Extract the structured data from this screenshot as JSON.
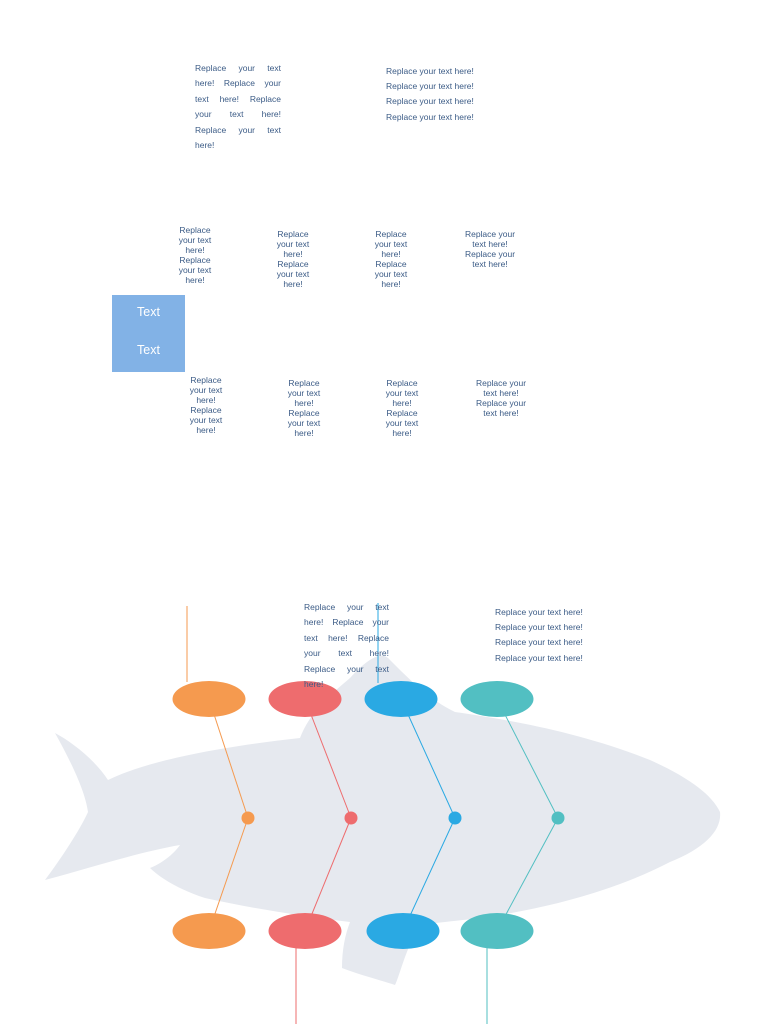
{
  "colors": {
    "fish": "#e6e9ef",
    "orange": "#f59a4f",
    "red": "#ee6c6e",
    "blue": "#2aa9e3",
    "teal": "#52bfc2",
    "box": "#82b2e6",
    "text": "#3b5b86"
  },
  "top_section": {
    "block_left": "Replace your text here! Replace your text here! Replace your text here!",
    "block_left_last": "Replace your text here!",
    "block_right": [
      "Replace your text here!",
      "Replace your text here!",
      "Replace your text here!",
      "Replace your text here!"
    ]
  },
  "middle_section": {
    "box_labels": [
      "Text",
      "Text"
    ],
    "upper_row": [
      [
        "Replace",
        "your text",
        "here!",
        "Replace",
        "your text",
        "here!"
      ],
      [
        "Replace",
        "your text",
        "here!",
        "Replace",
        "your text",
        "here!"
      ],
      [
        "Replace",
        "your text",
        "here!",
        "Replace",
        "your text",
        "here!"
      ],
      [
        "Replace your",
        "text here!",
        "Replace your",
        "text here!"
      ]
    ],
    "lower_row": [
      [
        "Replace",
        "your text",
        "here!",
        "Replace",
        "your text",
        "here!"
      ],
      [
        "Replace",
        "your text",
        "here!",
        "Replace",
        "your text",
        "here!"
      ],
      [
        "Replace",
        "your text",
        "here!",
        "Replace",
        "your text",
        "here!"
      ],
      [
        "Replace your",
        "text here!",
        "Replace your",
        "text here!"
      ]
    ]
  },
  "fishbone": {
    "block_left": "Replace your text here! Replace your text here! Replace your text here!",
    "block_left_last": "Replace your text here!",
    "block_right": [
      "Replace your text here!",
      "Replace your text here!",
      "Replace your text here!",
      "Replace your text here!"
    ],
    "nodes": [
      {
        "color_key": "orange"
      },
      {
        "color_key": "red"
      },
      {
        "color_key": "blue"
      },
      {
        "color_key": "teal"
      }
    ]
  }
}
